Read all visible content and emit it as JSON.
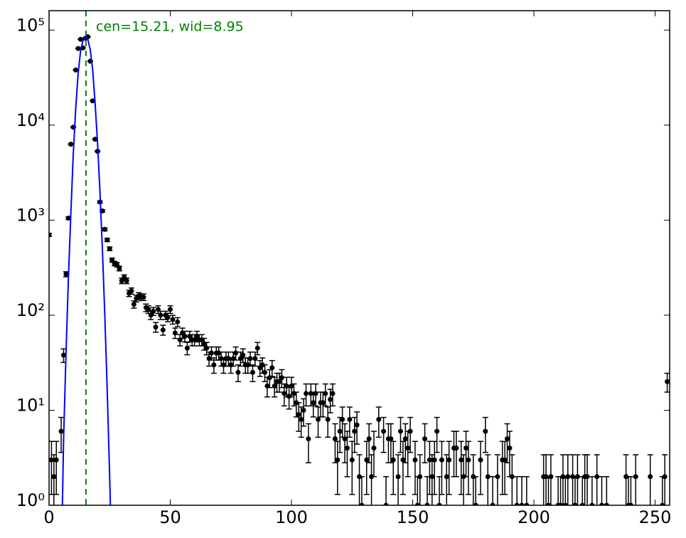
{
  "chart_data": {
    "type": "scatter",
    "annotation": "cen=15.21, wid=8.95",
    "xlim": [
      0,
      256
    ],
    "ylim": [
      1,
      160000
    ],
    "log_y": true,
    "xticks": [
      0,
      50,
      100,
      150,
      200,
      250
    ],
    "yticks": [
      {
        "value": 1,
        "label": "10⁰"
      },
      {
        "value": 10,
        "label": "10¹"
      },
      {
        "value": 100,
        "label": "10²"
      },
      {
        "value": 1000,
        "label": "10³"
      },
      {
        "value": 10000,
        "label": "10⁴"
      },
      {
        "value": 100000,
        "label": "10⁵"
      }
    ],
    "color": "#000000",
    "x": [
      0,
      1,
      2,
      3,
      4,
      5,
      6,
      7,
      8,
      9,
      10,
      11,
      12,
      13,
      14,
      15,
      16,
      17,
      18,
      19,
      20,
      21,
      22,
      23,
      24,
      25,
      26,
      27,
      28,
      29,
      30,
      31,
      32,
      33,
      34,
      35,
      36,
      37,
      38,
      39,
      40,
      41,
      42,
      43,
      44,
      45,
      46,
      47,
      48,
      49,
      50,
      51,
      52,
      53,
      54,
      55,
      56,
      57,
      58,
      59,
      60,
      61,
      62,
      63,
      64,
      65,
      66,
      67,
      68,
      69,
      70,
      71,
      72,
      73,
      74,
      75,
      76,
      77,
      78,
      79,
      80,
      81,
      82,
      83,
      84,
      85,
      86,
      87,
      88,
      89,
      90,
      91,
      92,
      93,
      94,
      95,
      96,
      97,
      98,
      99,
      100,
      101,
      102,
      103,
      104,
      105,
      106,
      107,
      108,
      109,
      110,
      111,
      112,
      113,
      114,
      115,
      116,
      117,
      118,
      119,
      120,
      121,
      122,
      123,
      124,
      125,
      126,
      127,
      128,
      129,
      130,
      131,
      132,
      133,
      134,
      135,
      136,
      137,
      138,
      139,
      140,
      141,
      142,
      143,
      144,
      145,
      146,
      147,
      148,
      149,
      150,
      151,
      152,
      153,
      154,
      155,
      156,
      157,
      158,
      159,
      160,
      161,
      162,
      163,
      164,
      165,
      166,
      167,
      168,
      169,
      170,
      171,
      172,
      173,
      174,
      175,
      176,
      177,
      178,
      179,
      180,
      181,
      182,
      183,
      184,
      185,
      186,
      187,
      188,
      189,
      190,
      191,
      192,
      193,
      194,
      195,
      196,
      197,
      198,
      199,
      200,
      201,
      202,
      203,
      204,
      205,
      206,
      207,
      208,
      209,
      210,
      211,
      212,
      213,
      214,
      215,
      216,
      217,
      218,
      219,
      220,
      221,
      222,
      223,
      224,
      225,
      226,
      227,
      228,
      229,
      230,
      231,
      232,
      233,
      234,
      235,
      236,
      237,
      238,
      239,
      240,
      241,
      242,
      243,
      244,
      245,
      246,
      247,
      248,
      249,
      250,
      251,
      252,
      253,
      254,
      255
    ],
    "values": [
      700,
      3,
      2,
      3,
      null,
      6,
      38,
      270,
      1050,
      6300,
      9500,
      38000,
      64000,
      80000,
      65000,
      82000,
      85000,
      47000,
      18000,
      7100,
      5300,
      1550,
      1250,
      800,
      620,
      500,
      380,
      350,
      340,
      310,
      230,
      250,
      230,
      170,
      180,
      130,
      150,
      160,
      155,
      155,
      120,
      115,
      100,
      110,
      75,
      115,
      100,
      70,
      100,
      95,
      115,
      90,
      65,
      85,
      55,
      65,
      60,
      45,
      60,
      55,
      55,
      60,
      55,
      55,
      50,
      45,
      35,
      40,
      30,
      40,
      40,
      35,
      30,
      35,
      35,
      30,
      35,
      40,
      25,
      35,
      38,
      30,
      30,
      35,
      25,
      35,
      45,
      28,
      30,
      25,
      18,
      22,
      28,
      18,
      20,
      20,
      22,
      15,
      18,
      14,
      18,
      15,
      12,
      9,
      8,
      10,
      15,
      5,
      15,
      12,
      15,
      8,
      12,
      12,
      15,
      8,
      13,
      15,
      5,
      3,
      6,
      8,
      5,
      4,
      8,
      3,
      6,
      7,
      2,
      1,
      null,
      3,
      5,
      2,
      4,
      null,
      8,
      null,
      6,
      1,
      5,
      5,
      3,
      null,
      2,
      6,
      3,
      5,
      4,
      6,
      null,
      3,
      1,
      2,
      null,
      5,
      1,
      3,
      2,
      3,
      6,
      1,
      3,
      null,
      2,
      3,
      null,
      4,
      4,
      null,
      3,
      2,
      4,
      3,
      null,
      2,
      1,
      null,
      3,
      null,
      6,
      2,
      null,
      1,
      null,
      2,
      null,
      3,
      3,
      5,
      4,
      2,
      null,
      1,
      null,
      1,
      null,
      1,
      null,
      null,
      null,
      null,
      null,
      null,
      2,
      2,
      1,
      2,
      null,
      null,
      1,
      1,
      2,
      1,
      2,
      null,
      2,
      1,
      2,
      null,
      1,
      2,
      2,
      null,
      1,
      null,
      2,
      null,
      1,
      null,
      1,
      null,
      null,
      null,
      null,
      null,
      null,
      null,
      2,
      1,
      1,
      null,
      2,
      null,
      null,
      null,
      null,
      null,
      2,
      null,
      null,
      null,
      null,
      1,
      2,
      20
    ],
    "errors": [
      26.5,
      1.7,
      1.4,
      1.7,
      null,
      2.4,
      6.2,
      16.4,
      32.4,
      79.4,
      97.5,
      195,
      253,
      283,
      255,
      286,
      292,
      217,
      134,
      84.3,
      72.8,
      39.4,
      35.4,
      28.3,
      24.9,
      22.4,
      19.5,
      18.7,
      18.4,
      17.6,
      15.2,
      15.8,
      15.2,
      13.0,
      13.4,
      11.4,
      12.2,
      12.6,
      12.4,
      12.4,
      11.0,
      10.7,
      10.0,
      10.5,
      8.7,
      10.7,
      10.0,
      8.4,
      10.0,
      9.7,
      10.7,
      9.5,
      8.1,
      9.2,
      7.4,
      8.1,
      7.7,
      6.7,
      7.7,
      7.4,
      7.4,
      7.7,
      7.4,
      7.4,
      7.1,
      6.7,
      5.9,
      6.3,
      5.5,
      6.3,
      6.3,
      5.9,
      5.5,
      5.9,
      5.9,
      5.5,
      5.9,
      6.3,
      5.0,
      5.9,
      6.2,
      5.5,
      5.5,
      5.9,
      5.0,
      5.9,
      6.7,
      5.3,
      5.5,
      5.0,
      4.2,
      4.7,
      5.3,
      4.2,
      4.5,
      4.5,
      4.7,
      3.9,
      4.2,
      3.7,
      4.2,
      3.9,
      3.5,
      3.0,
      2.8,
      3.2,
      3.9,
      2.2,
      3.9,
      3.5,
      3.9,
      2.8,
      3.5,
      3.5,
      3.9,
      2.8,
      3.6,
      3.9,
      2.2,
      1.7,
      2.4,
      2.8,
      2.2,
      2.0,
      2.8,
      1.7,
      2.4,
      2.6,
      1.4,
      1.0,
      null,
      1.7,
      2.2,
      1.4,
      2.0,
      null,
      2.8,
      null,
      2.4,
      1.0,
      2.2,
      2.2,
      1.7,
      null,
      1.4,
      2.4,
      1.7,
      2.2,
      2.0,
      2.4,
      null,
      1.7,
      1.0,
      1.4,
      null,
      2.2,
      1.0,
      1.7,
      1.4,
      1.7,
      2.4,
      1.0,
      1.7,
      null,
      1.4,
      1.7,
      null,
      2.0,
      2.0,
      null,
      1.7,
      1.4,
      2.0,
      1.7,
      null,
      1.4,
      1.0,
      null,
      1.7,
      null,
      2.4,
      1.4,
      null,
      1.0,
      null,
      1.4,
      null,
      1.7,
      1.7,
      2.2,
      2.0,
      1.4,
      null,
      1.0,
      null,
      1.0,
      null,
      1.0,
      null,
      null,
      null,
      null,
      null,
      null,
      1.4,
      1.4,
      1.0,
      1.4,
      null,
      null,
      1.0,
      1.0,
      1.4,
      1.0,
      1.4,
      null,
      1.4,
      1.0,
      1.4,
      null,
      1.0,
      1.4,
      1.4,
      null,
      1.0,
      null,
      1.4,
      null,
      1.0,
      null,
      1.0,
      null,
      null,
      null,
      null,
      null,
      null,
      null,
      1.4,
      1.0,
      1.0,
      null,
      1.4,
      null,
      null,
      null,
      null,
      null,
      1.4,
      null,
      null,
      null,
      null,
      1.0,
      1.4,
      4.5
    ],
    "fit": {
      "color": "#0000ff",
      "x": [
        5.5,
        6,
        7,
        8,
        9,
        10,
        11,
        12,
        13,
        14,
        15,
        16,
        17,
        18,
        19,
        20,
        21,
        22,
        23,
        24,
        25,
        25.3
      ],
      "values": [
        1,
        5,
        40,
        250,
        1200,
        5000,
        15000,
        35000,
        60000,
        78000,
        85000,
        80000,
        62000,
        38000,
        17000,
        6500,
        2000,
        500,
        100,
        16,
        2,
        1
      ]
    },
    "vline": {
      "x": 15.21,
      "color": "#008000"
    }
  }
}
